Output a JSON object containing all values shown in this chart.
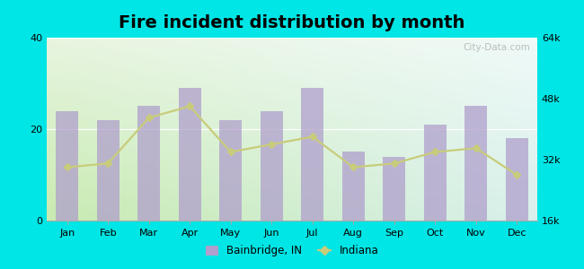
{
  "title": "Fire incident distribution by month",
  "months": [
    "Jan",
    "Feb",
    "Mar",
    "Apr",
    "May",
    "Jun",
    "Jul",
    "Aug",
    "Sep",
    "Oct",
    "Nov",
    "Dec"
  ],
  "bar_values": [
    24,
    22,
    25,
    29,
    22,
    24,
    29,
    15,
    14,
    21,
    25,
    18
  ],
  "line_values_right": [
    30000,
    31000,
    43000,
    46000,
    34000,
    36000,
    38000,
    30000,
    31000,
    34000,
    35000,
    28000
  ],
  "bar_color": "#b09fcc",
  "line_color": "#c8cc7a",
  "outer_bg": "#00e5e5",
  "bg_grad_bottom_left": "#c8ebb0",
  "bg_grad_top_right": "#e8f8f4",
  "ylim_left": [
    0,
    40
  ],
  "ylim_right": [
    16000,
    64000
  ],
  "yticks_left": [
    0,
    20,
    40
  ],
  "yticks_right_vals": [
    16000,
    32000,
    48000,
    64000
  ],
  "yticks_right_labels": [
    "16k",
    "32k",
    "48k",
    "64k"
  ],
  "legend_bainbridge": "Bainbridge, IN",
  "legend_indiana": "Indiana",
  "title_fontsize": 14,
  "watermark": "City-Data.com"
}
